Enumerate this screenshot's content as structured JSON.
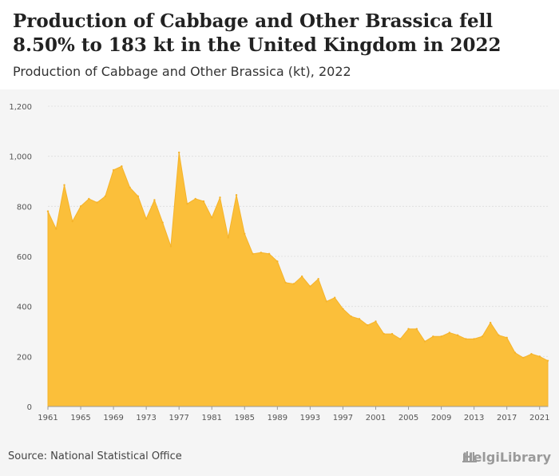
{
  "header": {
    "title": "Production of Cabbage and Other Brassica fell 8.50% to 183 kt in the United Kingdom in 2022",
    "subtitle": "Production of Cabbage and Other Brassica (kt), 2022"
  },
  "footer": {
    "source": "Source: National Statistical Office",
    "brand": "HelgiLibrary"
  },
  "colors": {
    "area_fill": "#fbbf3a",
    "area_stroke": "#f5b32a",
    "grid": "#dddddd",
    "tick_text": "#555555"
  },
  "chart_data": {
    "type": "area",
    "title": "Production of Cabbage and Other Brassica (kt), 2022",
    "xlabel": "",
    "ylabel": "",
    "ylim": [
      0,
      1200
    ],
    "yticks": [
      0,
      200,
      400,
      600,
      800,
      1000,
      1200
    ],
    "ytick_labels": [
      "0",
      "200",
      "400",
      "600",
      "800",
      "1,000",
      "1,200"
    ],
    "xticks": [
      "1961",
      "1965",
      "1969",
      "1973",
      "1977",
      "1981",
      "1985",
      "1989",
      "1993",
      "1997",
      "2001",
      "2005",
      "2009",
      "2013",
      "2017",
      "2021"
    ],
    "grid": true,
    "legend": "none",
    "x": [
      1961,
      1962,
      1963,
      1964,
      1965,
      1966,
      1967,
      1968,
      1969,
      1970,
      1971,
      1972,
      1973,
      1974,
      1975,
      1976,
      1977,
      1978,
      1979,
      1980,
      1981,
      1982,
      1983,
      1984,
      1985,
      1986,
      1987,
      1988,
      1989,
      1990,
      1991,
      1992,
      1993,
      1994,
      1995,
      1996,
      1997,
      1998,
      1999,
      2000,
      2001,
      2002,
      2003,
      2004,
      2005,
      2006,
      2007,
      2008,
      2009,
      2010,
      2011,
      2012,
      2013,
      2014,
      2015,
      2016,
      2017,
      2018,
      2019,
      2020,
      2021,
      2022
    ],
    "values": [
      780,
      710,
      885,
      740,
      800,
      830,
      815,
      840,
      945,
      960,
      875,
      840,
      750,
      825,
      735,
      640,
      1015,
      810,
      830,
      820,
      755,
      835,
      675,
      845,
      690,
      610,
      615,
      610,
      580,
      495,
      490,
      520,
      480,
      510,
      420,
      435,
      390,
      360,
      350,
      325,
      340,
      290,
      290,
      270,
      310,
      310,
      260,
      280,
      280,
      295,
      285,
      270,
      270,
      280,
      335,
      285,
      275,
      215,
      195,
      210,
      200,
      183
    ]
  }
}
